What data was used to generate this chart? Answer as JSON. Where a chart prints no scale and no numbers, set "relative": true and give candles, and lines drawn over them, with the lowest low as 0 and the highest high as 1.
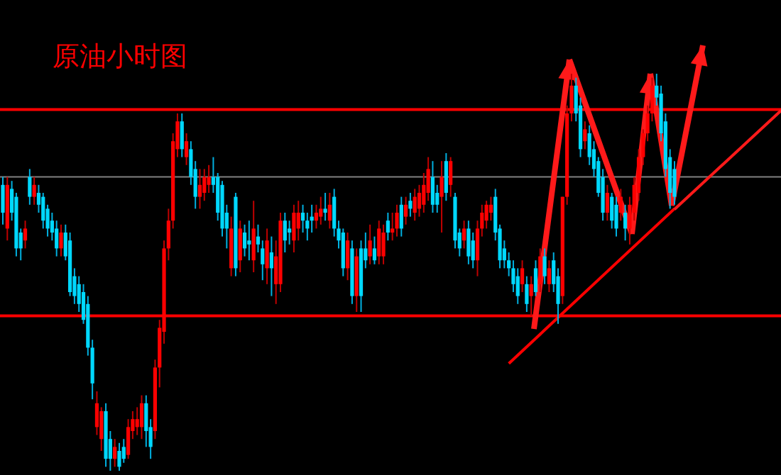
{
  "chart_data": {
    "type": "candlestick",
    "title": "原油小时图",
    "relative": true,
    "categories": [
      null,
      null,
      null,
      null,
      null,
      null,
      null,
      null,
      null,
      null,
      null,
      null,
      null,
      null,
      null,
      null,
      null,
      null,
      null,
      null,
      null,
      null,
      null,
      null,
      null,
      null,
      null,
      null,
      null,
      null,
      null,
      null,
      null,
      null,
      null,
      null,
      null,
      null,
      null,
      null,
      null,
      null,
      null,
      null,
      null,
      null,
      null,
      null,
      null,
      null,
      null,
      null,
      null,
      null,
      null,
      null,
      null,
      null,
      null,
      null,
      null,
      null,
      null,
      null,
      null,
      null,
      null,
      null,
      null,
      null,
      null,
      null,
      null,
      null,
      null,
      null,
      null,
      null,
      null,
      null,
      null,
      null,
      null,
      null,
      null,
      null,
      null,
      null,
      null,
      null,
      null,
      null,
      null,
      null,
      null,
      null,
      null,
      null,
      null,
      null,
      null,
      null,
      null,
      null,
      null,
      null,
      null,
      null,
      null,
      null,
      null,
      null,
      null,
      null,
      null,
      null,
      null,
      null,
      null,
      null,
      null,
      null,
      null,
      null,
      null,
      null,
      null,
      null,
      null,
      null,
      null,
      null,
      null,
      null,
      null,
      null,
      null,
      null,
      null,
      null,
      null,
      null,
      null,
      null,
      null,
      null,
      null,
      null,
      null,
      null,
      null
    ],
    "ohlc": [
      [
        0.72,
        0.74,
        0.62,
        0.65
      ],
      [
        0.61,
        0.74,
        0.58,
        0.72
      ],
      [
        0.71,
        0.73,
        0.63,
        0.65
      ],
      [
        0.69,
        0.7,
        0.54,
        0.56
      ],
      [
        0.6,
        0.61,
        0.53,
        0.56
      ],
      [
        0.58,
        0.63,
        0.56,
        0.61
      ],
      [
        0.74,
        0.76,
        0.67,
        0.69
      ],
      [
        0.69,
        0.74,
        0.67,
        0.72
      ],
      [
        0.7,
        0.72,
        0.65,
        0.67
      ],
      [
        0.69,
        0.7,
        0.61,
        0.63
      ],
      [
        0.66,
        0.67,
        0.59,
        0.61
      ],
      [
        0.63,
        0.65,
        0.58,
        0.6
      ],
      [
        0.61,
        0.63,
        0.54,
        0.56
      ],
      [
        0.56,
        0.62,
        0.54,
        0.6
      ],
      [
        0.6,
        0.62,
        0.53,
        0.54
      ],
      [
        0.58,
        0.6,
        0.44,
        0.45
      ],
      [
        0.49,
        0.51,
        0.42,
        0.44
      ],
      [
        0.47,
        0.49,
        0.4,
        0.42
      ],
      [
        0.45,
        0.47,
        0.37,
        0.38
      ],
      [
        0.42,
        0.44,
        0.29,
        0.31
      ],
      [
        0.31,
        0.33,
        0.18,
        0.22
      ],
      [
        0.11,
        0.2,
        0.09,
        0.17
      ],
      [
        0.08,
        0.16,
        0.05,
        0.15
      ],
      [
        0.15,
        0.17,
        0.01,
        0.03
      ],
      [
        0.08,
        0.1,
        0,
        0.03
      ],
      [
        0.03,
        0.08,
        0.01,
        0.06
      ],
      [
        0.05,
        0.07,
        0,
        0.01
      ],
      [
        0.06,
        0.08,
        0.02,
        0.03
      ],
      [
        0.04,
        0.13,
        0.03,
        0.11
      ],
      [
        0.1,
        0.15,
        0.08,
        0.13
      ],
      [
        0.11,
        0.16,
        0.09,
        0.13
      ],
      [
        0.11,
        0.19,
        0.08,
        0.17
      ],
      [
        0.17,
        0.19,
        0.06,
        0.1
      ],
      [
        0.11,
        0.13,
        0.03,
        0.06
      ],
      [
        0.1,
        0.28,
        0.08,
        0.26
      ],
      [
        0.26,
        0.38,
        0.21,
        0.36
      ],
      [
        0.35,
        0.58,
        0.32,
        0.56
      ],
      [
        0.56,
        0.66,
        0.53,
        0.63
      ],
      [
        0.63,
        0.85,
        0.61,
        0.83
      ],
      [
        0.81,
        0.9,
        0.79,
        0.88
      ],
      [
        0.88,
        0.9,
        0.79,
        0.81
      ],
      [
        0.79,
        0.85,
        0.77,
        0.83
      ],
      [
        0.81,
        0.83,
        0.72,
        0.74
      ],
      [
        0.76,
        0.78,
        0.66,
        0.69
      ],
      [
        0.69,
        0.76,
        0.66,
        0.72
      ],
      [
        0.7,
        0.76,
        0.68,
        0.74
      ],
      [
        0.72,
        0.77,
        0.7,
        0.74
      ],
      [
        0.74,
        0.79,
        0.7,
        0.72
      ],
      [
        0.74,
        0.75,
        0.63,
        0.65
      ],
      [
        0.72,
        0.73,
        0.59,
        0.61
      ],
      [
        0.65,
        0.67,
        0.56,
        0.61
      ],
      [
        0.51,
        0.64,
        0.49,
        0.61
      ],
      [
        0.69,
        0.7,
        0.49,
        0.51
      ],
      [
        0.53,
        0.63,
        0.5,
        0.61
      ],
      [
        0.6,
        0.62,
        0.54,
        0.56
      ],
      [
        0.58,
        0.63,
        0.53,
        0.57
      ],
      [
        0.53,
        0.68,
        0.5,
        0.61
      ],
      [
        0.59,
        0.62,
        0.55,
        0.57
      ],
      [
        0.56,
        0.58,
        0.48,
        0.52
      ],
      [
        0.51,
        0.61,
        0.47,
        0.58
      ],
      [
        0.55,
        0.59,
        0.44,
        0.51
      ],
      [
        0.47,
        0.58,
        0.42,
        0.54
      ],
      [
        0.47,
        0.65,
        0.45,
        0.63
      ],
      [
        0.63,
        0.65,
        0.55,
        0.58
      ],
      [
        0.61,
        0.63,
        0.57,
        0.6
      ],
      [
        0.58,
        0.67,
        0.55,
        0.65
      ],
      [
        0.61,
        0.68,
        0.58,
        0.65
      ],
      [
        0.65,
        0.67,
        0.6,
        0.63
      ],
      [
        0.63,
        0.65,
        0.58,
        0.61
      ],
      [
        0.64,
        0.67,
        0.6,
        0.63
      ],
      [
        0.63,
        0.67,
        0.61,
        0.65
      ],
      [
        0.64,
        0.69,
        0.62,
        0.66
      ],
      [
        0.66,
        0.7,
        0.63,
        0.65
      ],
      [
        0.63,
        0.7,
        0.61,
        0.67
      ],
      [
        0.69,
        0.71,
        0.59,
        0.61
      ],
      [
        0.61,
        0.63,
        0.56,
        0.58
      ],
      [
        0.6,
        0.61,
        0.49,
        0.51
      ],
      [
        0.51,
        0.6,
        0.48,
        0.58
      ],
      [
        0.56,
        0.58,
        0.42,
        0.44
      ],
      [
        0.44,
        0.56,
        0.4,
        0.54
      ],
      [
        0.56,
        0.58,
        0.4,
        0.44
      ],
      [
        0.56,
        0.6,
        0.51,
        0.53
      ],
      [
        0.54,
        0.62,
        0.52,
        0.58
      ],
      [
        0.56,
        0.59,
        0.52,
        0.53
      ],
      [
        0.54,
        0.63,
        0.52,
        0.61
      ],
      [
        0.54,
        0.62,
        0.52,
        0.6
      ],
      [
        0.63,
        0.65,
        0.58,
        0.6
      ],
      [
        0.6,
        0.65,
        0.58,
        0.61
      ],
      [
        0.61,
        0.67,
        0.59,
        0.65
      ],
      [
        0.67,
        0.69,
        0.59,
        0.61
      ],
      [
        0.64,
        0.69,
        0.62,
        0.67
      ],
      [
        0.68,
        0.7,
        0.64,
        0.66
      ],
      [
        0.65,
        0.71,
        0.63,
        0.69
      ],
      [
        0.66,
        0.72,
        0.64,
        0.7
      ],
      [
        0.67,
        0.75,
        0.65,
        0.72
      ],
      [
        0.7,
        0.79,
        0.68,
        0.76
      ],
      [
        0.74,
        0.78,
        0.65,
        0.67
      ],
      [
        0.7,
        0.72,
        0.65,
        0.67
      ],
      [
        0.69,
        0.78,
        0.6,
        0.74
      ],
      [
        0.78,
        0.8,
        0.68,
        0.7
      ],
      [
        0.72,
        0.79,
        0.69,
        0.78
      ],
      [
        0.69,
        0.7,
        0.56,
        0.58
      ],
      [
        0.6,
        0.61,
        0.54,
        0.56
      ],
      [
        0.58,
        0.63,
        0.56,
        0.61
      ],
      [
        0.61,
        0.63,
        0.52,
        0.54
      ],
      [
        0.58,
        0.6,
        0.51,
        0.53
      ],
      [
        0.53,
        0.63,
        0.49,
        0.61
      ],
      [
        0.61,
        0.67,
        0.59,
        0.65
      ],
      [
        0.63,
        0.68,
        0.61,
        0.67
      ],
      [
        0.65,
        0.69,
        0.63,
        0.67
      ],
      [
        0.69,
        0.71,
        0.58,
        0.6
      ],
      [
        0.61,
        0.62,
        0.51,
        0.53
      ],
      [
        0.56,
        0.58,
        0.51,
        0.53
      ],
      [
        0.53,
        0.55,
        0.49,
        0.51
      ],
      [
        0.51,
        0.53,
        0.45,
        0.47
      ],
      [
        0.49,
        0.51,
        0.42,
        0.44
      ],
      [
        0.47,
        0.53,
        0.45,
        0.51
      ],
      [
        0.47,
        0.49,
        0.4,
        0.42
      ],
      [
        0.44,
        0.49,
        0.39,
        0.47
      ],
      [
        0.51,
        0.53,
        0.44,
        0.45
      ],
      [
        0.47,
        0.56,
        0.45,
        0.54
      ],
      [
        0.54,
        0.56,
        0.47,
        0.49
      ],
      [
        0.47,
        0.53,
        0.45,
        0.51
      ],
      [
        0.53,
        0.55,
        0.45,
        0.47
      ],
      [
        0.49,
        0.51,
        0.37,
        0.42
      ],
      [
        0.44,
        0.69,
        0.42,
        0.69
      ],
      [
        0.69,
        0.92,
        0.67,
        0.9
      ],
      [
        0.9,
        1,
        0.88,
        0.97
      ],
      [
        0.97,
        0.99,
        0.88,
        0.9
      ],
      [
        0.92,
        0.94,
        0.79,
        0.81
      ],
      [
        0.83,
        0.88,
        0.81,
        0.86
      ],
      [
        0.85,
        0.87,
        0.77,
        0.79
      ],
      [
        0.81,
        0.83,
        0.74,
        0.76
      ],
      [
        0.78,
        0.79,
        0.69,
        0.7
      ],
      [
        0.74,
        0.76,
        0.63,
        0.65
      ],
      [
        0.65,
        0.72,
        0.63,
        0.7
      ],
      [
        0.69,
        0.7,
        0.61,
        0.63
      ],
      [
        0.67,
        0.69,
        0.59,
        0.61
      ],
      [
        0.65,
        0.71,
        0.63,
        0.69
      ],
      [
        0.65,
        0.67,
        0.58,
        0.61
      ],
      [
        0.61,
        0.69,
        0.57,
        0.67
      ],
      [
        0.65,
        0.74,
        0.63,
        0.72
      ],
      [
        0.7,
        0.81,
        0.68,
        0.79
      ],
      [
        0.79,
        0.86,
        0.77,
        0.85
      ],
      [
        0.85,
        0.92,
        0.83,
        0.9
      ],
      [
        0.9,
        0.99,
        0.88,
        0.97
      ],
      [
        0.97,
        1,
        0.92,
        0.94
      ],
      [
        0.95,
        0.97,
        0.83,
        0.85
      ],
      [
        0.88,
        0.9,
        0.74,
        0.76
      ],
      [
        0.79,
        0.81,
        0.66,
        0.7
      ],
      [
        0.76,
        0.78,
        0.67,
        0.69
      ]
    ],
    "series": [
      {
        "type": "line",
        "color": "#ff0000",
        "values": [
          null,
          null,
          null,
          null,
          null,
          null,
          null,
          null,
          null,
          null,
          null,
          null,
          null,
          null,
          null,
          null,
          null,
          null,
          null,
          null,
          null,
          null,
          null,
          null,
          null,
          null,
          null,
          null,
          null,
          null,
          null,
          null,
          null,
          null,
          null,
          null,
          null,
          null,
          null,
          null,
          null,
          null,
          null,
          null,
          null,
          null,
          null,
          null,
          null,
          null,
          null,
          null,
          null,
          null,
          null,
          null,
          null,
          null,
          null,
          null,
          null,
          null,
          null,
          null,
          null,
          null,
          null,
          null,
          null,
          null,
          null,
          null,
          null,
          null,
          null,
          null,
          null,
          null,
          null,
          null,
          null,
          null,
          null,
          null,
          null,
          null,
          null,
          null,
          null,
          null,
          null,
          null,
          null,
          null,
          null,
          null,
          null,
          null,
          null,
          null,
          null,
          null,
          null,
          null,
          null,
          null,
          null,
          null,
          null,
          null,
          null,
          null,
          null,
          0.27,
          null,
          null,
          null,
          null,
          null,
          null,
          null,
          null,
          null,
          null,
          null,
          null,
          null,
          null,
          null,
          null,
          null,
          null,
          null,
          null,
          null,
          null,
          null,
          null,
          null,
          null,
          null,
          null,
          null,
          null,
          null,
          null,
          null,
          null,
          null,
          null,
          0.66
        ]
      }
    ],
    "ref_lines": [
      {
        "axis": "y",
        "value": 0.91,
        "color": "#ff0000"
      },
      {
        "axis": "y",
        "value": 0.74,
        "color": "#808080"
      },
      {
        "axis": "y",
        "value": 0.39,
        "color": "#ff0000"
      }
    ]
  }
}
